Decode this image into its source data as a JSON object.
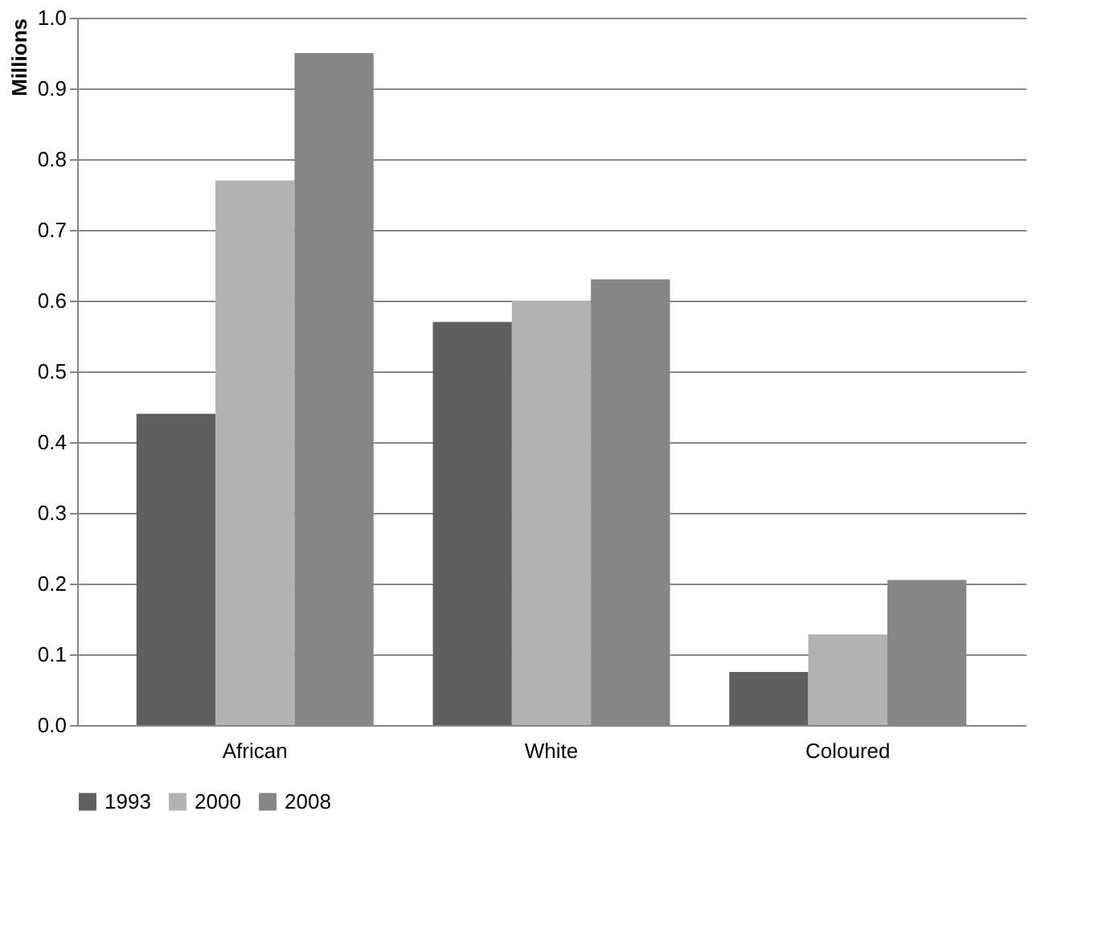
{
  "chart_data": {
    "type": "bar",
    "ylabel": "Millions",
    "categories": [
      "African",
      "White",
      "Coloured"
    ],
    "series": [
      {
        "name": "1993",
        "color": "#5f5f5f",
        "values": [
          0.44,
          0.57,
          0.075
        ]
      },
      {
        "name": "2000",
        "color": "#b2b2b2",
        "values": [
          0.77,
          0.6,
          0.128
        ]
      },
      {
        "name": "2008",
        "color": "#868686",
        "values": [
          0.95,
          0.63,
          0.205
        ]
      }
    ],
    "ylim": [
      0,
      1.0
    ],
    "yticks": [
      {
        "value": 0,
        "label": "0.0"
      },
      0.1,
      0.2,
      0.3,
      0.4,
      0.5,
      0.6,
      0.7,
      0.8,
      0.9,
      {
        "value": 1.0,
        "label": "1.0"
      }
    ],
    "grid": "y",
    "legend": "bottom"
  }
}
